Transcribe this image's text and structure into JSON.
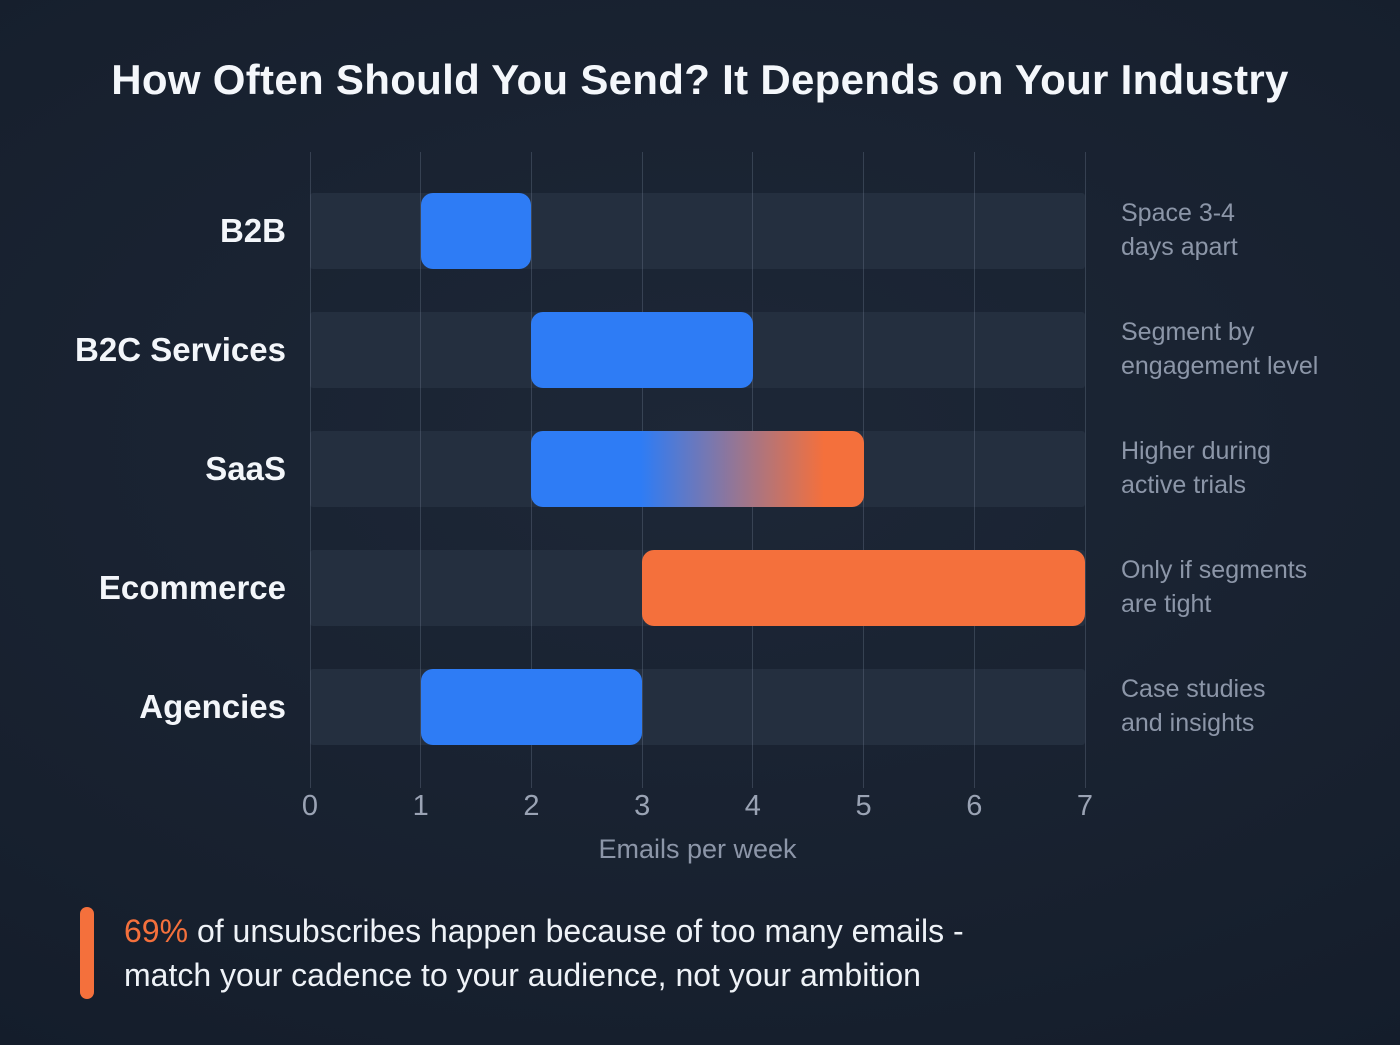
{
  "title": "How Often Should You Send? It Depends on Your Industry",
  "colors": {
    "background": "#17202e",
    "track": "#242f3f",
    "blue": "#2e7cf5",
    "orange": "#f4703c",
    "grid": "rgba(128,142,166,0.28)",
    "title_text": "#f4f7fb",
    "category_text": "#f3f6fa",
    "muted_text": "#8c96a8",
    "tick_text": "#9aa3b4"
  },
  "chart_data": {
    "type": "bar",
    "orientation": "horizontal-range",
    "title": "How Often Should You Send? It Depends on Your Industry",
    "xlabel": "Emails per week",
    "xlim": [
      0,
      7
    ],
    "xticks": [
      0,
      1,
      2,
      3,
      4,
      5,
      6,
      7
    ],
    "grid": true,
    "legend_position": "none",
    "categories": [
      "B2B",
      "B2C Services",
      "SaaS",
      "Ecommerce",
      "Agencies"
    ],
    "bars": [
      {
        "label": "B2B",
        "start": 1,
        "end": 2,
        "fill": "blue",
        "note_lines": [
          "Space 3-4",
          "days apart"
        ]
      },
      {
        "label": "B2C Services",
        "start": 2,
        "end": 4,
        "fill": "blue",
        "note_lines": [
          "Segment by",
          "engagement level"
        ]
      },
      {
        "label": "SaaS",
        "start": 2,
        "end": 5,
        "fill": "gradient",
        "note_lines": [
          "Higher during",
          "active trials"
        ]
      },
      {
        "label": "Ecommerce",
        "start": 3,
        "end": 7,
        "fill": "orange",
        "note_lines": [
          "Only if segments",
          "are tight"
        ]
      },
      {
        "label": "Agencies",
        "start": 1,
        "end": 3,
        "fill": "blue",
        "note_lines": [
          "Case studies",
          "and insights"
        ]
      }
    ]
  },
  "callout": {
    "highlight": "69%",
    "line1_rest": " of unsubscribes happen because of too many emails -",
    "line2": "match your cadence to your audience, not your ambition"
  }
}
